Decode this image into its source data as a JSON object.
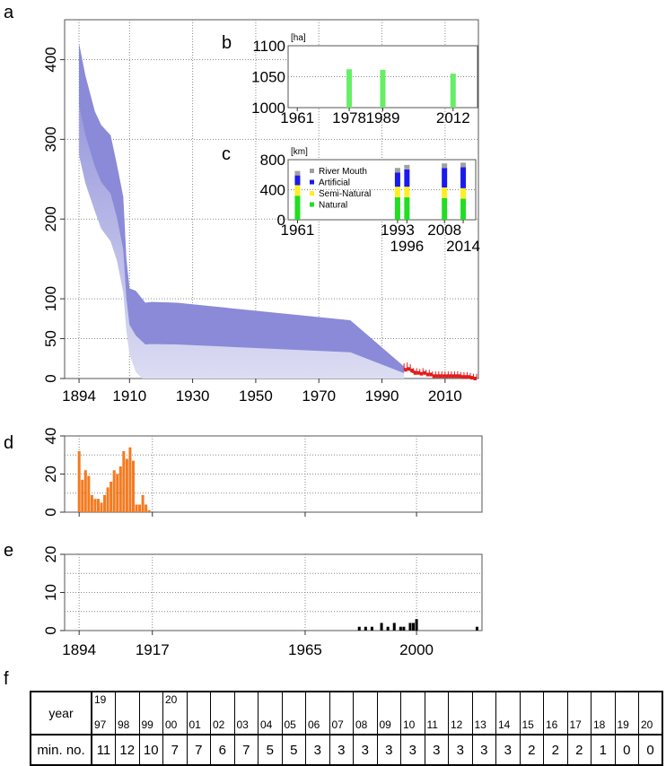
{
  "panel_labels": {
    "a": "a",
    "b": "b",
    "c": "c",
    "d": "d",
    "e": "e",
    "f": "f"
  },
  "colors": {
    "band": "#8a8ad8",
    "band_light": "#dcdcf3",
    "red": "#e41a1c",
    "orange": "#f47a20",
    "green": "#66ee66",
    "bright_green": "#22dd22",
    "yellow": "#ffee22",
    "blue": "#1a1aee",
    "gray": "#a0a0a0",
    "black": "#000000"
  },
  "chart_data": [
    {
      "id": "a",
      "type": "area",
      "title": "",
      "xlim": [
        1890,
        2020
      ],
      "ylim": [
        0,
        450
      ],
      "x_ticks": [
        1894,
        1910,
        1930,
        1950,
        1970,
        1990,
        2010
      ],
      "y_ticks": [
        0,
        50,
        100,
        200,
        300,
        400
      ],
      "grid": true,
      "upper": [
        [
          1894,
          420
        ],
        [
          1896,
          380
        ],
        [
          1899,
          335
        ],
        [
          1901,
          318
        ],
        [
          1904,
          305
        ],
        [
          1906,
          268
        ],
        [
          1908,
          228
        ],
        [
          1909,
          150
        ],
        [
          1910,
          113
        ],
        [
          1912,
          110
        ],
        [
          1915,
          95
        ],
        [
          1917,
          96
        ],
        [
          1925,
          95
        ],
        [
          1980,
          73
        ],
        [
          1997,
          15
        ]
      ],
      "lower": [
        [
          1894,
          280
        ],
        [
          1896,
          245
        ],
        [
          1899,
          210
        ],
        [
          1901,
          188
        ],
        [
          1904,
          172
        ],
        [
          1906,
          148
        ],
        [
          1908,
          108
        ],
        [
          1909,
          60
        ],
        [
          1910,
          30
        ],
        [
          1912,
          8
        ],
        [
          1914,
          0
        ],
        [
          1997,
          0
        ]
      ],
      "red_series": {
        "x": [
          1997,
          1998,
          1999,
          2000,
          2001,
          2002,
          2003,
          2004,
          2005,
          2006,
          2007,
          2008,
          2009,
          2010,
          2011,
          2012,
          2013,
          2014,
          2015,
          2016,
          2017,
          2018,
          2019,
          2020
        ],
        "y": [
          11,
          12,
          10,
          7,
          7,
          6,
          7,
          5,
          5,
          3,
          3,
          3,
          3,
          3,
          3,
          3,
          3,
          3,
          2,
          2,
          2,
          1,
          0,
          0
        ],
        "err": [
          8,
          8,
          8,
          6,
          6,
          6,
          6,
          6,
          6,
          6,
          6,
          6,
          6,
          6,
          6,
          6,
          6,
          6,
          6,
          6,
          6,
          6,
          6,
          6
        ]
      }
    },
    {
      "id": "b",
      "type": "bar",
      "unit": "[ha]",
      "ylim": [
        1000,
        1100
      ],
      "y_ticks": [
        1000,
        1050,
        1100
      ],
      "xlim": [
        1958,
        2020
      ],
      "x_ticks": [
        1961,
        1978,
        1989,
        2012
      ],
      "x": [
        1978,
        1989,
        2012
      ],
      "values": [
        1062,
        1061,
        1055
      ]
    },
    {
      "id": "c",
      "type": "bar",
      "unit": "[km]",
      "ylim": [
        0,
        800
      ],
      "y_ticks": [
        0,
        400,
        800
      ],
      "xlim": [
        1958,
        2018
      ],
      "x_ticks_top": [
        1961,
        1993,
        2008
      ],
      "x_ticks_bottom": [
        1996,
        2014
      ],
      "legend": [
        "River Mouth",
        "Artificial",
        "Semi-Natural",
        "Natural"
      ],
      "x": [
        1961,
        1993,
        1996,
        2008,
        2014
      ],
      "series": [
        {
          "name": "Natural",
          "values": [
            320,
            300,
            300,
            290,
            280
          ]
        },
        {
          "name": "Semi-Natural",
          "values": [
            140,
            140,
            140,
            140,
            140
          ]
        },
        {
          "name": "Artificial",
          "values": [
            130,
            190,
            230,
            260,
            280
          ]
        },
        {
          "name": "River Mouth",
          "values": [
            60,
            60,
            60,
            60,
            60
          ]
        }
      ]
    },
    {
      "id": "d",
      "type": "bar",
      "xlim": [
        1890,
        2020
      ],
      "ylim": [
        0,
        40
      ],
      "y_ticks": [
        0,
        20,
        40
      ],
      "x_ticks": [
        1894,
        1917,
        1965,
        2000
      ],
      "x": [
        1894,
        1895,
        1896,
        1897,
        1898,
        1899,
        1900,
        1901,
        1902,
        1903,
        1904,
        1905,
        1906,
        1907,
        1908,
        1909,
        1910,
        1911,
        1912,
        1913,
        1914,
        1915,
        1916
      ],
      "values": [
        32,
        17,
        22,
        19,
        9,
        7,
        7,
        5,
        9,
        13,
        16,
        22,
        20,
        24,
        32,
        28,
        34,
        27,
        4,
        4,
        9,
        4,
        1
      ]
    },
    {
      "id": "e",
      "type": "bar",
      "xlim": [
        1890,
        2020
      ],
      "ylim": [
        0,
        20
      ],
      "y_ticks": [
        0,
        10,
        20
      ],
      "x_ticks": [
        1894,
        1917,
        1965,
        2000
      ],
      "x": [
        1982,
        1984,
        1986,
        1989,
        1991,
        1993,
        1995,
        1996,
        1998,
        1999,
        2000,
        2019
      ],
      "values": [
        1,
        1,
        1,
        2,
        1,
        2,
        1,
        1,
        2,
        2,
        3,
        1
      ]
    },
    {
      "id": "f",
      "type": "table",
      "row_labels": {
        "year": "year",
        "min": "min. no."
      },
      "year_cells": [
        {
          "cent": "19",
          "two": "97"
        },
        {
          "cent": "",
          "two": "98"
        },
        {
          "cent": "",
          "two": "99"
        },
        {
          "cent": "20",
          "two": "00"
        },
        {
          "cent": "",
          "two": "01"
        },
        {
          "cent": "",
          "two": "02"
        },
        {
          "cent": "",
          "two": "03"
        },
        {
          "cent": "",
          "two": "04"
        },
        {
          "cent": "",
          "two": "05"
        },
        {
          "cent": "",
          "two": "06"
        },
        {
          "cent": "",
          "two": "07"
        },
        {
          "cent": "",
          "two": "08"
        },
        {
          "cent": "",
          "two": "09"
        },
        {
          "cent": "",
          "two": "10"
        },
        {
          "cent": "",
          "two": "11"
        },
        {
          "cent": "",
          "two": "12"
        },
        {
          "cent": "",
          "two": "13"
        },
        {
          "cent": "",
          "two": "14"
        },
        {
          "cent": "",
          "two": "15"
        },
        {
          "cent": "",
          "two": "16"
        },
        {
          "cent": "",
          "two": "17"
        },
        {
          "cent": "",
          "two": "18"
        },
        {
          "cent": "",
          "two": "19"
        },
        {
          "cent": "",
          "two": "20"
        }
      ],
      "min_values": [
        "11",
        "12",
        "10",
        "7",
        "7",
        "6",
        "7",
        "5",
        "5",
        "3",
        "3",
        "3",
        "3",
        "3",
        "3",
        "3",
        "3",
        "3",
        "2",
        "2",
        "2",
        "1",
        "0",
        "0"
      ]
    }
  ]
}
